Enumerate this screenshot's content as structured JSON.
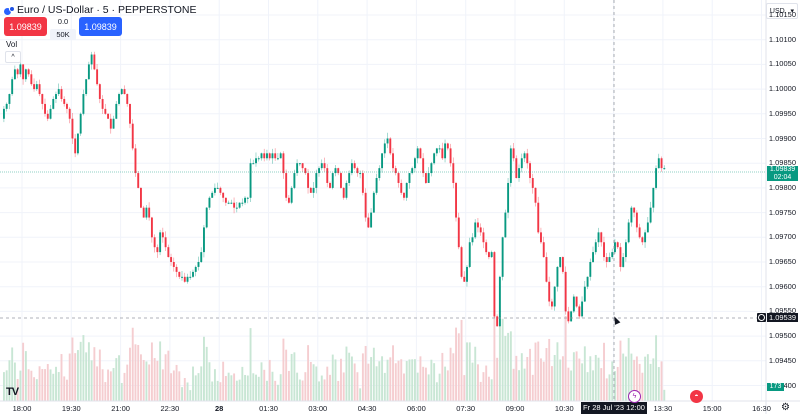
{
  "header": {
    "symbol_title": "Euro / US-Dollar · 5 · PEPPERSTONE",
    "sell_price": "1.09839",
    "buy_price": "1.09839",
    "spread": "0.0",
    "quantity": "50K",
    "volume_label": "Vol",
    "collapse_glyph": "^",
    "currency": "USD",
    "currency_caret": "▾"
  },
  "colors": {
    "up": "#089981",
    "down": "#f23645",
    "up_vol": "#c8e6d4",
    "down_vol": "#f5cdd0",
    "grid": "#f0f3fa",
    "crosshair": "#9598a1",
    "last_price_line": "#089981"
  },
  "price_axis": {
    "labels": [
      "1.10150",
      "1.10100",
      "1.10050",
      "1.10000",
      "1.09950",
      "1.09900",
      "1.09850",
      "1.09800",
      "1.09750",
      "1.09700",
      "1.09650",
      "1.09600",
      "1.09550",
      "1.09500",
      "1.09450",
      "1.09400"
    ],
    "last_price": "1.09839",
    "countdown": "02:04",
    "crosshair_price": "1.09539",
    "volume_badge": "173"
  },
  "time_axis": {
    "labels": [
      "18:00",
      "19:30",
      "21:00",
      "22:30",
      "28",
      "01:30",
      "03:00",
      "04:30",
      "06:00",
      "07:30",
      "09:00",
      "10:30",
      "12:00",
      "13:30",
      "15:00",
      "16:30"
    ],
    "crosshair_time": "Fr 28 Jul '23   12:00"
  },
  "icons": {
    "logo": "TV",
    "gear": "⚙",
    "earnings": "ϟ",
    "flag": "◓",
    "target": "◎"
  },
  "chart_data": {
    "type": "candlestick",
    "title": "Euro / US-Dollar · 5 · PEPPERSTONE",
    "xlabel": "",
    "ylabel": "USD",
    "interval": "5m",
    "ylim": [
      1.094,
      1.1017
    ],
    "x_start": "27 Jul 17:40",
    "x_end": "28 Jul 12:15",
    "grid": true,
    "last_price": 1.09839,
    "crosshair": {
      "time": "Fr 28 Jul '23 12:00",
      "price": 1.09539
    },
    "close_path": [
      1.0996,
      1.0997,
      1.0999,
      1.1002,
      1.1004,
      1.1003,
      1.1005,
      1.1002,
      1.1004,
      1.1003,
      1.1001,
      1.1,
      1.1001,
      1.0999,
      1.0997,
      1.0995,
      1.0994,
      1.0996,
      1.0998,
      1.0999,
      1.1,
      1.0998,
      1.0997,
      1.0996,
      1.0994,
      1.099,
      1.0987,
      1.0991,
      1.0995,
      1.0999,
      1.1002,
      1.1005,
      1.1007,
      1.1004,
      1.1001,
      1.0998,
      1.0996,
      1.0995,
      1.0994,
      1.0992,
      1.0994,
      1.0997,
      1.0999,
      1.1,
      1.0999,
      1.0997,
      1.0993,
      1.0988,
      1.0983,
      1.098,
      1.0976,
      1.0974,
      1.0976,
      1.0974,
      1.097,
      1.0968,
      1.0967,
      1.0971,
      1.097,
      1.0968,
      1.0966,
      1.0965,
      1.0964,
      1.0963,
      1.0962,
      1.0962,
      1.0961,
      1.0962,
      1.0962,
      1.0963,
      1.0964,
      1.0965,
      1.0967,
      1.0972,
      1.0976,
      1.0978,
      1.0979,
      1.098,
      1.098,
      1.0979,
      1.0978,
      1.0977,
      1.0977,
      1.0977,
      1.0976,
      1.0976,
      1.0977,
      1.0977,
      1.0978,
      1.0978,
      1.0985,
      1.0985,
      1.0986,
      1.0986,
      1.0987,
      1.0986,
      1.0987,
      1.0986,
      1.0987,
      1.0986,
      1.0986,
      1.0987,
      1.0983,
      1.0978,
      1.0977,
      1.098,
      1.0983,
      1.0985,
      1.0985,
      1.0984,
      1.0983,
      1.098,
      1.0979,
      1.098,
      1.0983,
      1.0984,
      1.0985,
      1.0984,
      1.0981,
      1.098,
      1.0983,
      1.0984,
      1.0983,
      1.098,
      1.0978,
      1.0981,
      1.0983,
      1.0985,
      1.0984,
      1.0983,
      1.0983,
      1.0979,
      1.0974,
      1.0972,
      1.0975,
      1.0979,
      1.0982,
      1.0984,
      1.0987,
      1.0989,
      1.099,
      1.0987,
      1.0984,
      1.0983,
      1.0981,
      1.0979,
      1.0978,
      1.0981,
      1.0983,
      1.0984,
      1.0986,
      1.0988,
      1.0986,
      1.0983,
      1.0981,
      1.0983,
      1.0985,
      1.0987,
      1.0988,
      1.0988,
      1.0986,
      1.0989,
      1.0988,
      1.0985,
      1.0981,
      1.0974,
      1.0968,
      1.0962,
      1.0961,
      1.0964,
      1.0969,
      1.097,
      1.0973,
      1.0972,
      1.0971,
      1.0969,
      1.0967,
      1.0966,
      1.0967,
      1.0954,
      1.0952,
      1.0962,
      1.097,
      1.0975,
      1.0981,
      1.0988,
      1.0986,
      1.0982,
      1.0984,
      1.0986,
      1.0987,
      1.0985,
      1.0982,
      1.098,
      1.0977,
      1.0971,
      1.0969,
      1.0966,
      1.0961,
      1.0957,
      1.0956,
      1.096,
      1.0964,
      1.0966,
      1.0963,
      1.0955,
      1.0953,
      1.0955,
      1.0958,
      1.0956,
      1.0954,
      1.0957,
      1.096,
      1.0962,
      1.0965,
      1.0967,
      1.0969,
      1.0971,
      1.0969,
      1.0966,
      1.0965,
      1.0966,
      1.0967,
      1.0969,
      1.0968,
      1.0964,
      1.0966,
      1.0969,
      1.0973,
      1.0976,
      1.0975,
      1.0972,
      1.097,
      1.0969,
      1.0971,
      1.0973,
      1.0976,
      1.098,
      1.0984,
      1.0986,
      1.0984,
      1.0984
    ]
  }
}
